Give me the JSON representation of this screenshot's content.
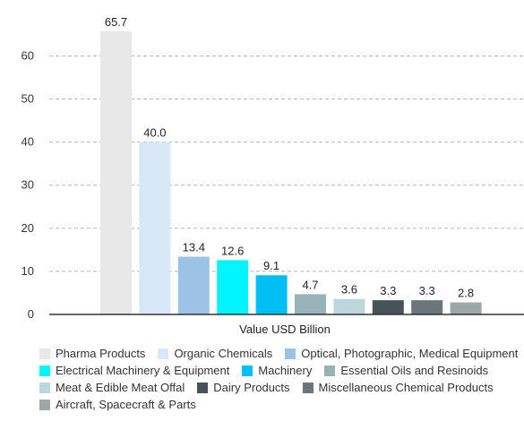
{
  "chart_data": {
    "type": "bar",
    "xlabel": "Value USD Billion",
    "ylabel": "",
    "ylim": [
      0,
      68
    ],
    "yticks": [
      0,
      10,
      20,
      30,
      40,
      50,
      60
    ],
    "grid": true,
    "legend_position": "bottom",
    "series": [
      {
        "name": "Pharma Products",
        "value": 65.7,
        "value_label": "65.7",
        "color": "#e8e8e8"
      },
      {
        "name": "Organic Chemicals",
        "value": 40.0,
        "value_label": "40.0",
        "color": "#d9e8f8"
      },
      {
        "name": "Optical, Photographic, Medical Equipment",
        "value": 13.4,
        "value_label": "13.4",
        "color": "#9cc3e6"
      },
      {
        "name": "Electrical Machinery & Equipment",
        "value": 12.6,
        "value_label": "12.6",
        "color": "#00f5ff"
      },
      {
        "name": "Machinery",
        "value": 9.1,
        "value_label": "9.1",
        "color": "#00bff4"
      },
      {
        "name": "Essential Oils and Resinoids",
        "value": 4.7,
        "value_label": "4.7",
        "color": "#98b3b8"
      },
      {
        "name": "Meat & Edible Meat Offal",
        "value": 3.6,
        "value_label": "3.6",
        "color": "#bed7dd"
      },
      {
        "name": "Dairy Products",
        "value": 3.3,
        "value_label": "3.3",
        "color": "#485358"
      },
      {
        "name": "Miscellaneous Chemical Products",
        "value": 3.3,
        "value_label": "3.3",
        "color": "#6b7678"
      },
      {
        "name": "Aircraft, Spacecraft & Parts",
        "value": 2.8,
        "value_label": "2.8",
        "color": "#9ea7a7"
      }
    ]
  }
}
